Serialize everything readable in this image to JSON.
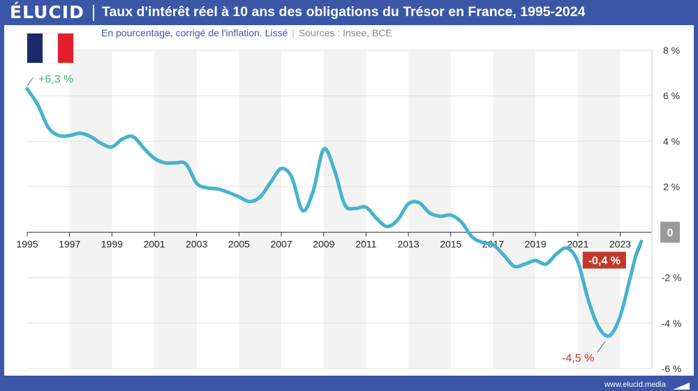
{
  "header": {
    "logo": "ÉLUCID",
    "title": "Taux d'intérêt réel à 10 ans des obligations du Trésor en France, 1995-2024"
  },
  "subtitle": {
    "text": "En pourcentage, corrigé de l'inflation. Lissé",
    "sources": "Sources : Insee, BCE"
  },
  "footer": {
    "url": "www.elucid.media"
  },
  "flag_colors": [
    "#1a2a6c",
    "#ffffff",
    "#e3202a"
  ],
  "chart_data": {
    "type": "line",
    "title": "Taux d'intérêt réel à 10 ans des obligations du Trésor en France, 1995-2024",
    "subtitle": "En pourcentage, corrigé de l'inflation. Lissé",
    "ylim": [
      -6,
      8
    ],
    "xlim": [
      1995,
      2024
    ],
    "x_ticks": [
      "1995",
      "1997",
      "1999",
      "2001",
      "2003",
      "2005",
      "2007",
      "2009",
      "2011",
      "2013",
      "2015",
      "2017",
      "2019",
      "2021",
      "2023"
    ],
    "y_ticks": [
      {
        "value": 8,
        "label": "8 %"
      },
      {
        "value": 6,
        "label": "6 %"
      },
      {
        "value": 4,
        "label": "4 %"
      },
      {
        "value": 2,
        "label": "2 %"
      },
      {
        "value": 0,
        "label": "0"
      },
      {
        "value": -2,
        "label": "-2 %"
      },
      {
        "value": -4,
        "label": "-4 %"
      },
      {
        "value": -6,
        "label": "-6 %"
      }
    ],
    "grid": true,
    "line_color": "#45b3cc",
    "series": [
      {
        "values": [
          [
            1995.0,
            6.3
          ],
          [
            1995.5,
            5.6
          ],
          [
            1996.0,
            4.6
          ],
          [
            1996.5,
            4.25
          ],
          [
            1997.0,
            4.25
          ],
          [
            1997.5,
            4.35
          ],
          [
            1998.0,
            4.2
          ],
          [
            1998.5,
            3.9
          ],
          [
            1999.0,
            3.75
          ],
          [
            1999.5,
            4.1
          ],
          [
            2000.0,
            4.2
          ],
          [
            2000.5,
            3.7
          ],
          [
            2001.0,
            3.25
          ],
          [
            2001.5,
            3.05
          ],
          [
            2002.0,
            3.05
          ],
          [
            2002.5,
            3.0
          ],
          [
            2003.0,
            2.15
          ],
          [
            2003.5,
            1.95
          ],
          [
            2004.0,
            1.9
          ],
          [
            2004.5,
            1.75
          ],
          [
            2005.0,
            1.55
          ],
          [
            2005.5,
            1.35
          ],
          [
            2006.0,
            1.55
          ],
          [
            2006.5,
            2.2
          ],
          [
            2007.0,
            2.8
          ],
          [
            2007.5,
            2.4
          ],
          [
            2008.0,
            0.95
          ],
          [
            2008.5,
            1.8
          ],
          [
            2009.0,
            3.65
          ],
          [
            2009.5,
            2.75
          ],
          [
            2010.0,
            1.2
          ],
          [
            2010.5,
            1.05
          ],
          [
            2011.0,
            1.1
          ],
          [
            2011.5,
            0.6
          ],
          [
            2012.0,
            0.25
          ],
          [
            2012.5,
            0.55
          ],
          [
            2013.0,
            1.25
          ],
          [
            2013.5,
            1.3
          ],
          [
            2014.0,
            0.85
          ],
          [
            2014.5,
            0.7
          ],
          [
            2015.0,
            0.75
          ],
          [
            2015.5,
            0.45
          ],
          [
            2016.0,
            -0.2
          ],
          [
            2016.5,
            -0.45
          ],
          [
            2017.0,
            -0.55
          ],
          [
            2017.5,
            -1.0
          ],
          [
            2018.0,
            -1.5
          ],
          [
            2018.5,
            -1.4
          ],
          [
            2019.0,
            -1.25
          ],
          [
            2019.5,
            -1.4
          ],
          [
            2020.0,
            -0.95
          ],
          [
            2020.5,
            -0.7
          ],
          [
            2021.0,
            -1.3
          ],
          [
            2021.5,
            -3.0
          ],
          [
            2022.0,
            -4.2
          ],
          [
            2022.5,
            -4.55
          ],
          [
            2023.0,
            -3.7
          ],
          [
            2023.5,
            -1.9
          ],
          [
            2023.75,
            -1.0
          ],
          [
            2024.0,
            -0.4
          ]
        ]
      }
    ],
    "annotations": [
      {
        "text": "+6,3 %",
        "x": 1995.0,
        "y": 6.3,
        "color": "#3cb371"
      },
      {
        "text": "-4,5 %",
        "x": 2022.5,
        "y": -4.55,
        "color": "#c0392b"
      },
      {
        "text": "-0,4 %",
        "x": 2024.0,
        "y": -0.4,
        "color": "#ffffff",
        "background": "#c0392b"
      }
    ],
    "zero_label_background": "#9a9a9a",
    "band_color": "#f3f3f3"
  }
}
